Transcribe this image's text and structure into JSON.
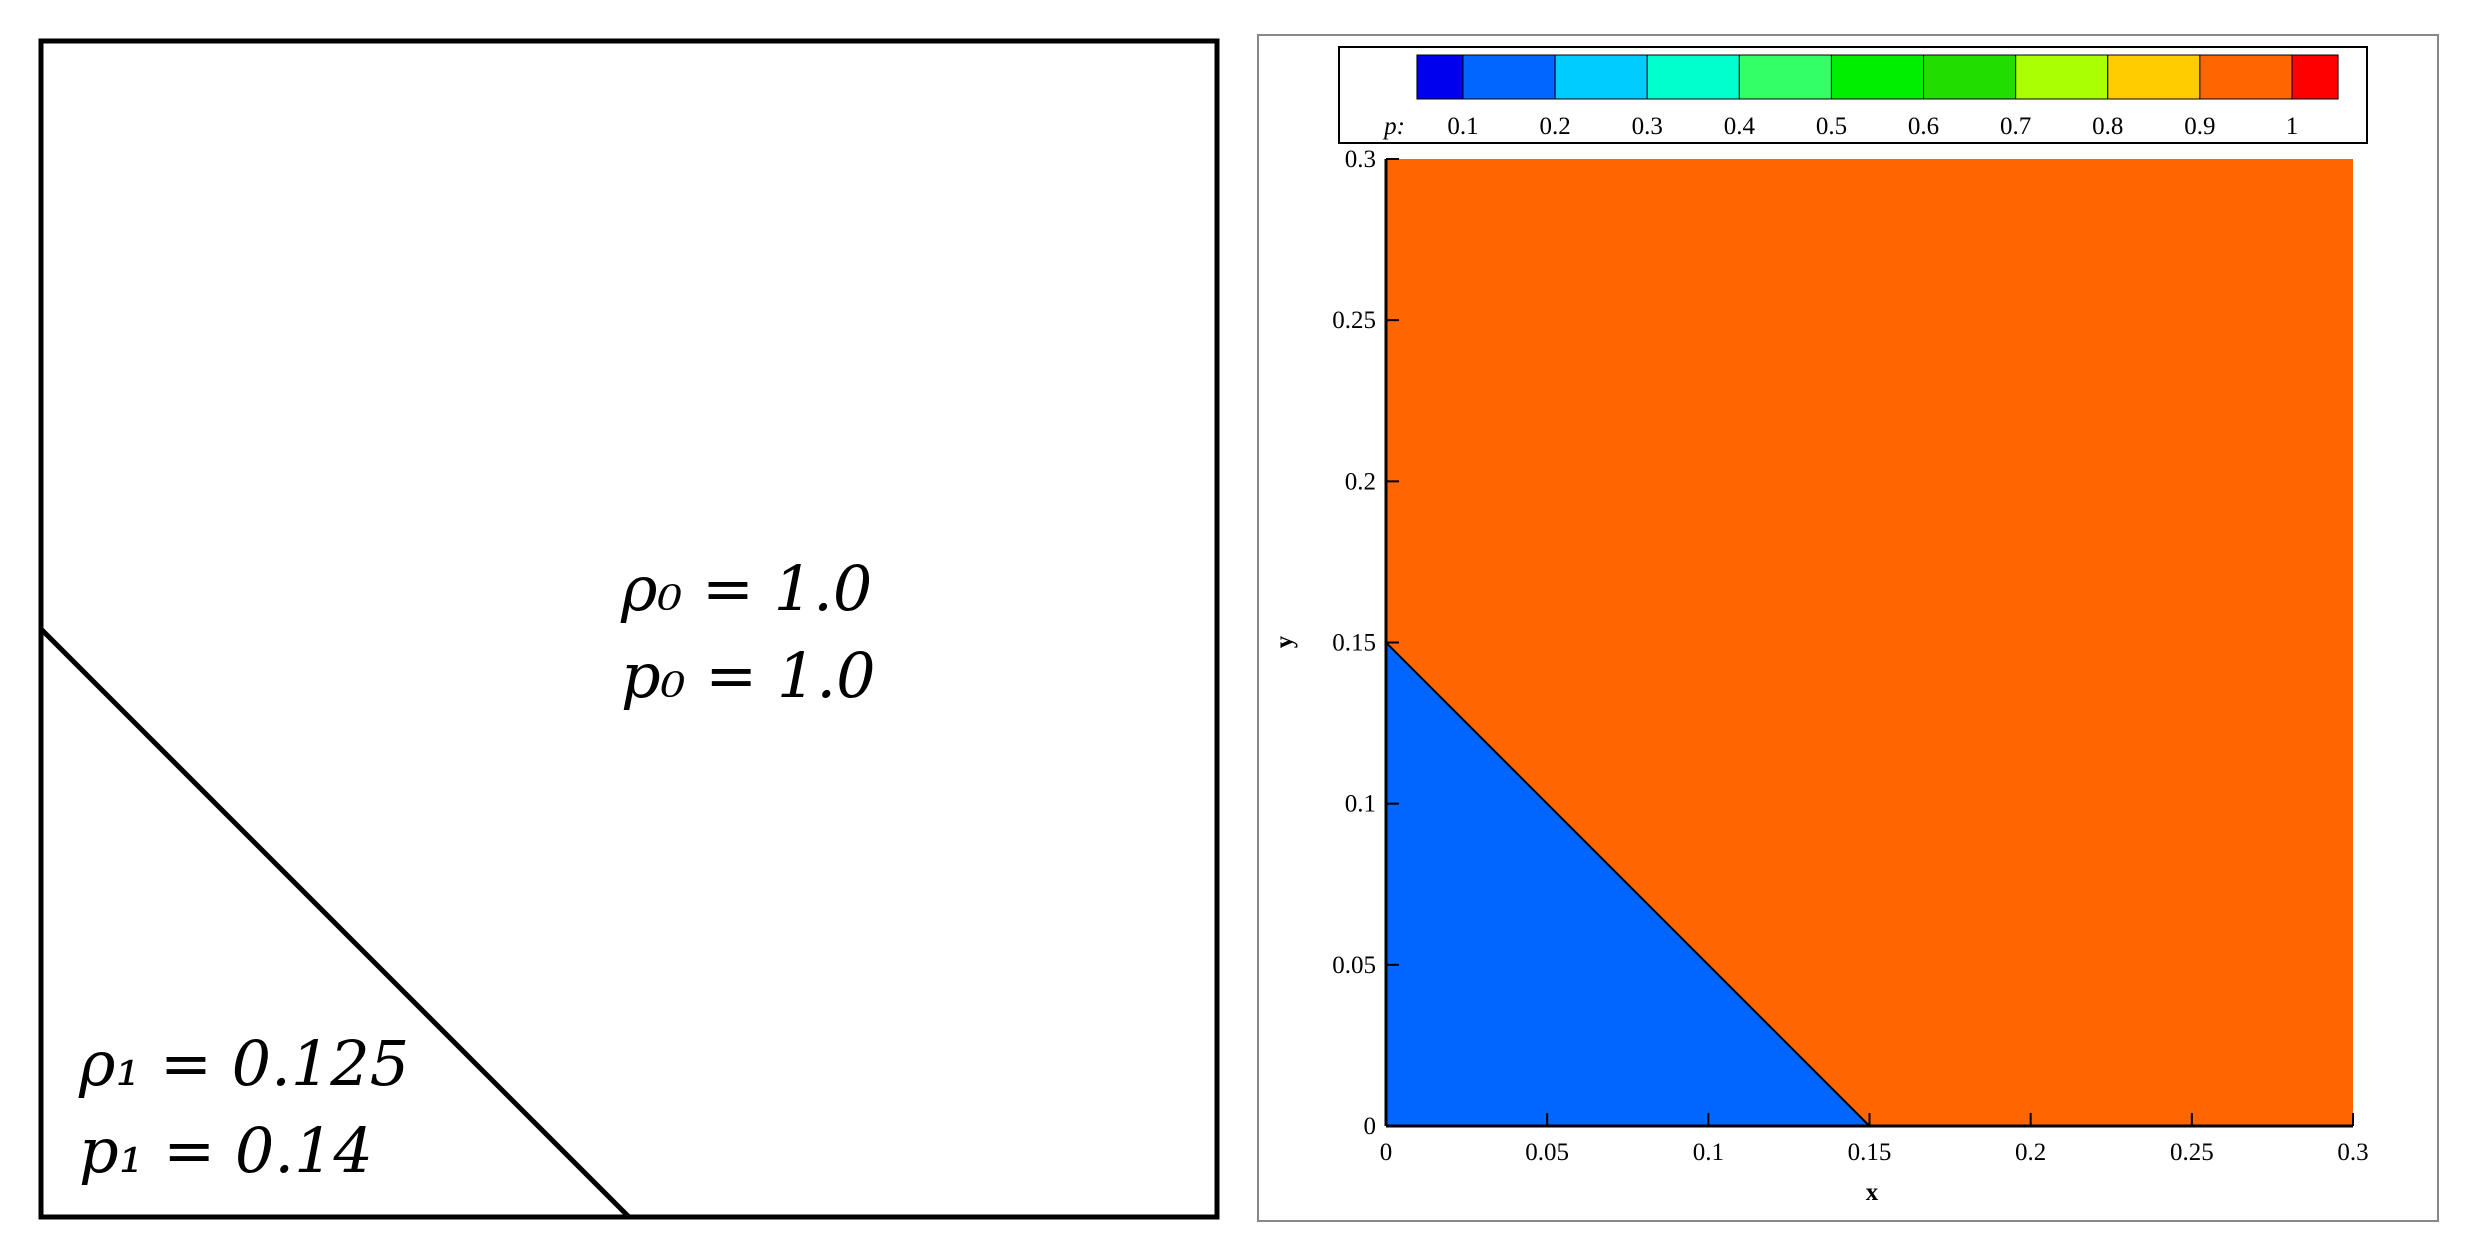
{
  "diagram": {
    "upper_region": {
      "density": "ρ₀ = 1.0",
      "pressure": "p₀ = 1.0"
    },
    "lower_region": {
      "density": "ρ₁ = 0.125",
      "pressure": "p₁ = 0.14"
    }
  },
  "chart_data": {
    "type": "contour",
    "xlabel": "x",
    "ylabel": "y",
    "legend_title": "p:",
    "levels": [
      0.1,
      0.2,
      0.3,
      0.4,
      0.5,
      0.6,
      0.7,
      0.8,
      0.9,
      1
    ],
    "level_colors": [
      "#0000ee",
      "#0066ff",
      "#00ccff",
      "#00ffcc",
      "#33ff66",
      "#00ee00",
      "#22dd00",
      "#aaff00",
      "#ffcc00",
      "#ff6600",
      "#ff0000"
    ],
    "regions": [
      {
        "value": 0.14,
        "color": "#0066ff",
        "x": [
          0,
          0.15,
          0
        ],
        "y": [
          0,
          0,
          0.15
        ]
      },
      {
        "value": 1.0,
        "color": "#ff6600",
        "x": [
          0,
          0.15,
          0.3,
          0.3,
          0
        ],
        "y": [
          0.15,
          0,
          0,
          0.3,
          0.3
        ]
      }
    ],
    "xlim": [
      0,
      0.3
    ],
    "ylim": [
      0,
      0.3
    ],
    "xticks": [
      0,
      0.05,
      0.1,
      0.15,
      0.2,
      0.25,
      0.3
    ],
    "yticks": [
      0,
      0.05,
      0.1,
      0.15,
      0.2,
      0.25,
      0.3
    ]
  }
}
